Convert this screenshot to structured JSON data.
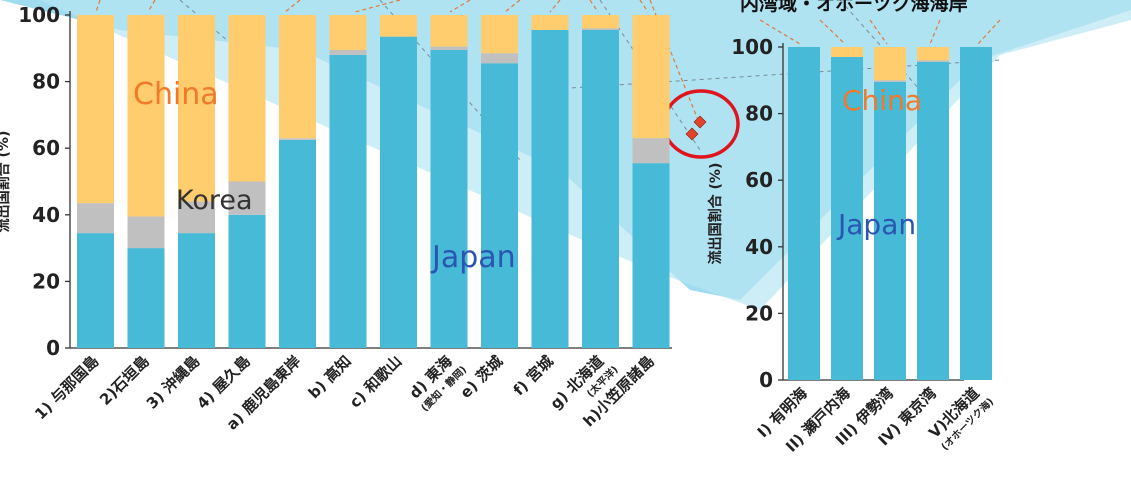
{
  "colors": {
    "japan": "#46bad6",
    "korea": "#c0c0c0",
    "china": "#ffcc6e",
    "china_label": "#f07a2a",
    "japan_label": "#2a55b0",
    "korea_label": "#333333",
    "highlight_circle": "#e0141c",
    "marker": "#e2442a",
    "background_band": "#8fd3e8"
  },
  "top_right_caption": "内湾域・オホーツク海海岸",
  "chart_data": [
    {
      "type": "bar",
      "stacked": true,
      "ylabel": "流出国割合 (%)",
      "ylim": [
        0,
        100
      ],
      "yticks": [
        0,
        20,
        40,
        60,
        80,
        100
      ],
      "categories": [
        {
          "label": "1) 与那国島",
          "sub": ""
        },
        {
          "label": "2)石垣島",
          "sub": ""
        },
        {
          "label": "3) 沖縄島",
          "sub": ""
        },
        {
          "label": "4) 屋久島",
          "sub": ""
        },
        {
          "label": "a) 鹿児島東岸",
          "sub": ""
        },
        {
          "label": "b) 高知",
          "sub": ""
        },
        {
          "label": "c) 和歌山",
          "sub": ""
        },
        {
          "label": "d) 東海",
          "sub": "(愛知・静岡)"
        },
        {
          "label": "e) 茨城",
          "sub": ""
        },
        {
          "label": "f) 宮城",
          "sub": ""
        },
        {
          "label": "g) 北海道",
          "sub": "(太平洋)"
        },
        {
          "label": "h)小笠原諸島",
          "sub": ""
        }
      ],
      "series": [
        {
          "name": "Japan",
          "values": [
            34.5,
            30,
            34.5,
            40,
            62.5,
            88,
            93.5,
            89.5,
            85.5,
            95.5,
            95.5,
            55.5
          ]
        },
        {
          "name": "Korea",
          "values": [
            9,
            9.5,
            9.5,
            10,
            0.5,
            1.5,
            0,
            1,
            3,
            0,
            0.5,
            7.5
          ]
        },
        {
          "name": "China",
          "values": [
            56.5,
            60.5,
            56,
            50,
            37,
            10.5,
            6.5,
            9.5,
            11.5,
            4.5,
            4,
            37
          ]
        }
      ],
      "overlay_labels": {
        "china": "China",
        "korea": "Korea",
        "japan": "Japan"
      }
    },
    {
      "type": "bar",
      "stacked": true,
      "ylabel": "流出国割合 (%)",
      "ylim": [
        0,
        100
      ],
      "yticks": [
        0,
        20,
        40,
        60,
        80,
        100
      ],
      "categories": [
        {
          "label": "I) 有明海",
          "sub": ""
        },
        {
          "label": "II) 瀬戸内海",
          "sub": ""
        },
        {
          "label": "III) 伊勢湾",
          "sub": ""
        },
        {
          "label": "IV) 東京湾",
          "sub": ""
        },
        {
          "label": "V)北海道",
          "sub": "(オホーツク海)"
        }
      ],
      "series": [
        {
          "name": "Japan",
          "values": [
            100,
            97,
            89.5,
            95.5,
            100
          ]
        },
        {
          "name": "Korea",
          "values": [
            0,
            0,
            0.5,
            0.5,
            0
          ]
        },
        {
          "name": "China",
          "values": [
            0,
            3,
            10,
            4,
            0
          ]
        }
      ],
      "overlay_labels": {
        "china": "China",
        "japan": "Japan"
      }
    }
  ]
}
